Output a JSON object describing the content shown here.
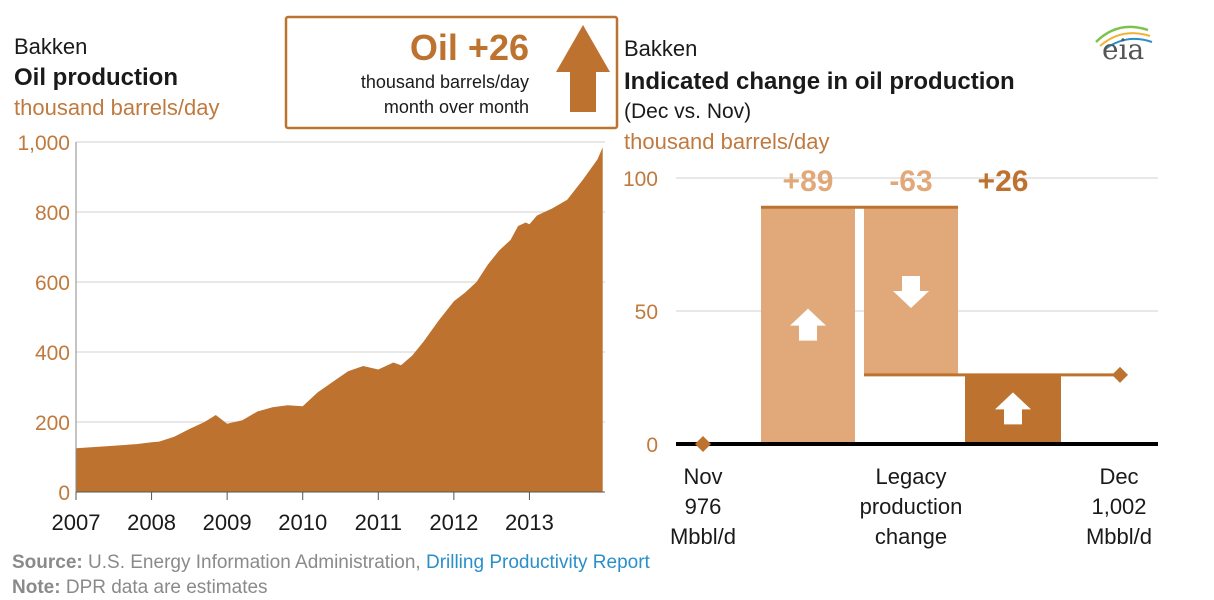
{
  "left": {
    "region": "Bakken",
    "title": "Oil production",
    "unit": "thousand barrels/day"
  },
  "callout": {
    "headline": "Oil +26",
    "line1": "thousand barrels/day",
    "line2": "month over month"
  },
  "right": {
    "region": "Bakken",
    "title": "Indicated change in oil production",
    "subtitle": "(Dec vs. Nov)",
    "unit": "thousand barrels/day",
    "x_labels": [
      [
        "Nov",
        "976",
        "Mbbl/d"
      ],
      [
        "Legacy",
        "production",
        "change"
      ],
      [
        "Dec",
        "1,002",
        "Mbbl/d"
      ]
    ]
  },
  "logo": "eia",
  "footer": {
    "source_label": "Source:",
    "source_text": "U.S. Energy Information Administration,",
    "source_link": "Drilling Productivity Report",
    "note_label": "Note:",
    "note_text": "DPR data are estimates"
  },
  "colors": {
    "dark": "#bd732f",
    "light": "#e1a97a",
    "text_brown": "#c07a3e",
    "grid": "#d0d0d0",
    "axis": "#000000"
  },
  "chart_data": [
    {
      "type": "area",
      "title": "Oil production",
      "ylabel": "thousand barrels/day",
      "ylim": [
        0,
        1000
      ],
      "yticks": [
        0,
        200,
        400,
        600,
        800,
        1000
      ],
      "ytick_labels": [
        "0",
        "200",
        "400",
        "600",
        "800",
        "1,000"
      ],
      "xticks": [
        2007,
        2008,
        2009,
        2010,
        2011,
        2012,
        2013
      ],
      "xtick_labels": [
        "2007",
        "2008",
        "2009",
        "2010",
        "2011",
        "2012",
        "2013"
      ],
      "xlim": [
        2007,
        2014
      ],
      "grid": true,
      "x": [
        2007.0,
        2007.2,
        2007.5,
        2007.8,
        2008.0,
        2008.1,
        2008.3,
        2008.5,
        2008.7,
        2008.85,
        2009.0,
        2009.2,
        2009.4,
        2009.6,
        2009.8,
        2010.0,
        2010.2,
        2010.4,
        2010.6,
        2010.8,
        2010.9,
        2011.0,
        2011.2,
        2011.3,
        2011.45,
        2011.6,
        2011.8,
        2012.0,
        2012.15,
        2012.3,
        2012.45,
        2012.6,
        2012.75,
        2012.85,
        2012.95,
        2013.0,
        2013.1,
        2013.3,
        2013.5,
        2013.7,
        2013.9,
        2013.97
      ],
      "values": [
        125,
        128,
        132,
        137,
        142,
        144,
        158,
        180,
        200,
        220,
        195,
        205,
        230,
        242,
        248,
        245,
        285,
        315,
        345,
        360,
        355,
        350,
        370,
        362,
        390,
        430,
        490,
        545,
        570,
        600,
        650,
        690,
        720,
        760,
        770,
        765,
        790,
        810,
        835,
        890,
        950,
        985
      ]
    },
    {
      "type": "bar",
      "title": "Indicated change in oil production",
      "subtitle": "(Dec vs. Nov)",
      "ylabel": "thousand barrels/day",
      "ylim": [
        0,
        100
      ],
      "yticks": [
        0,
        50,
        100
      ],
      "grid": true,
      "categories": [
        "Nov 976 Mbbl/d",
        "",
        "Legacy production change",
        "",
        "Dec 1,002 Mbbl/d"
      ],
      "steps": [
        {
          "label": "+89",
          "value": 89,
          "start": 0,
          "end": 89,
          "direction": "up"
        },
        {
          "label": "-63",
          "value": -63,
          "start": 89,
          "end": 26,
          "direction": "down"
        },
        {
          "label": "+26",
          "value": 26,
          "start": 0,
          "end": 26,
          "direction": "up"
        }
      ],
      "endpoints": [
        {
          "label": "Nov",
          "value": 0
        },
        {
          "label": "Dec",
          "value": 26
        }
      ]
    }
  ]
}
